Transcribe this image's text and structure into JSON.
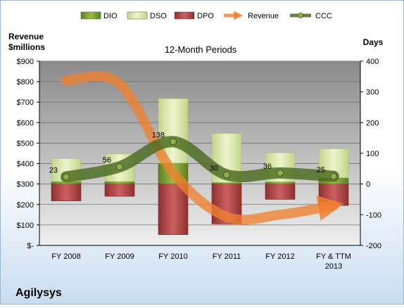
{
  "chart_data": {
    "type": "bar",
    "title": "12-Month Periods",
    "company": "Agilysys",
    "left_axis": {
      "label_line1": "Revenue",
      "label_line2": "$millions",
      "range": [
        0,
        900
      ],
      "ticks": [
        0,
        100,
        200,
        300,
        400,
        500,
        600,
        700,
        800,
        900
      ],
      "tick_labels": [
        "$-",
        "$100",
        "$200",
        "$300",
        "$400",
        "$500",
        "$600",
        "$700",
        "$800",
        "$900"
      ]
    },
    "right_axis": {
      "label": "Days",
      "range": [
        -200,
        400
      ],
      "ticks": [
        -200,
        -100,
        0,
        100,
        200,
        300,
        400
      ],
      "tick_labels": [
        "-200",
        "-100",
        "0",
        "100",
        "200",
        "300",
        "400"
      ]
    },
    "categories": [
      "FY 2008",
      "FY 2009",
      "FY 2010",
      "FY 2011",
      "FY 2012",
      "FY & TTM 2013"
    ],
    "category_lines": [
      [
        "FY 2008"
      ],
      [
        "FY 2009"
      ],
      [
        "FY 2010"
      ],
      [
        "FY 2011"
      ],
      [
        "FY 2012"
      ],
      [
        "FY & TTM",
        "2013"
      ]
    ],
    "legend": [
      {
        "name": "DIO",
        "kind": "bar",
        "color": "#7a9a2e"
      },
      {
        "name": "DSO",
        "kind": "bar",
        "color": "#dce8a8"
      },
      {
        "name": "DPO",
        "kind": "bar",
        "color": "#b84a4a"
      },
      {
        "name": "Revenue",
        "kind": "arrow",
        "color": "#f0a060"
      },
      {
        "name": "CCC",
        "kind": "line",
        "color": "#5a7a28"
      }
    ],
    "series": [
      {
        "name": "DIO",
        "axis": "right",
        "values": [
          8,
          8,
          68,
          5,
          7,
          20
        ]
      },
      {
        "name": "DSO",
        "axis": "right",
        "values": [
          75,
          90,
          210,
          160,
          95,
          95
        ]
      },
      {
        "name": "DPO",
        "axis": "right",
        "values": [
          -55,
          -40,
          -165,
          -130,
          -50,
          -70
        ]
      },
      {
        "name": "Revenue",
        "axis": "left",
        "values": [
          805,
          790,
          355,
          140,
          150,
          195
        ]
      },
      {
        "name": "CCC",
        "axis": "right",
        "values": [
          23,
          56,
          138,
          30,
          36,
          25
        ]
      }
    ],
    "ccc_labels": [
      "23",
      "56",
      "138",
      "30",
      "36",
      "25"
    ],
    "colors": {
      "plot_bg_top": "#8c8c8c",
      "plot_bg_bottom": "#ececec",
      "page_bg_bottom": "#c8dcf0",
      "dio": "#7a9a2e",
      "dso": "#dce8a8",
      "dpo": "#b84a4a",
      "revenue": "#f08030",
      "ccc": "#4a6a20"
    }
  }
}
